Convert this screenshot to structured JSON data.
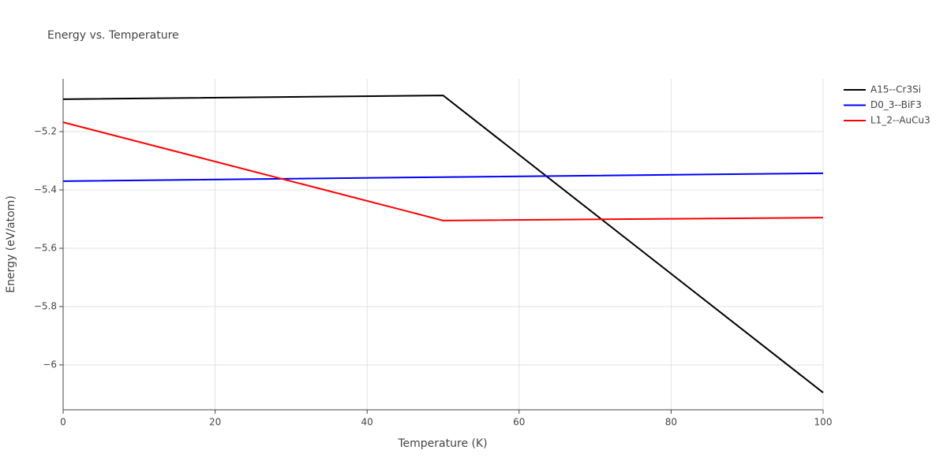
{
  "chart_data": {
    "type": "line",
    "title": "Energy vs. Temperature",
    "x_label": "Temperature (K)",
    "y_label": "Energy (eV/atom)",
    "x": [
      0,
      50,
      100
    ],
    "series": [
      {
        "name": "A15--Cr3Si",
        "color": "#000000",
        "values": [
          -5.089,
          -5.076,
          -6.095
        ]
      },
      {
        "name": "D0_3--BiF3",
        "color": "#0000ff",
        "values": [
          -5.37,
          -5.356,
          -5.343
        ]
      },
      {
        "name": "L1_2--AuCu3",
        "color": "#ff0000",
        "values": [
          -5.168,
          -5.505,
          -5.495
        ]
      }
    ],
    "xlim": [
      0,
      100
    ],
    "xticks": [
      0,
      20,
      40,
      60,
      80,
      100
    ],
    "ylim": [
      -6.154,
      -5.019
    ],
    "yticks": [
      {
        "value": -6,
        "label": "−6"
      },
      {
        "value": -5.8,
        "label": "−5.8"
      },
      {
        "value": -5.6,
        "label": "−5.6"
      },
      {
        "value": -5.4,
        "label": "−5.4"
      },
      {
        "value": -5.2,
        "label": "−5.2"
      }
    ],
    "grid": true,
    "legend": "right"
  }
}
